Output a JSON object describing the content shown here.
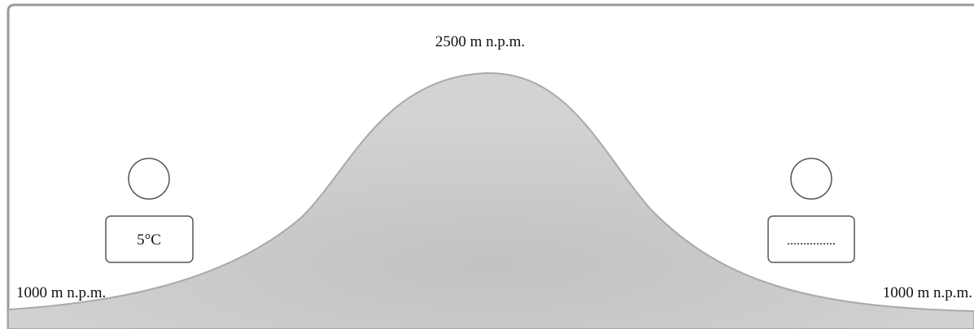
{
  "peak_label": "2500 m n.p.m.",
  "left_base_label": "1000 m n.p.m.",
  "right_base_label": "1000 m n.p.m.",
  "left_station": {
    "temperature": "5°C"
  },
  "right_station": {
    "temperature": "..............."
  },
  "colors": {
    "mountain_fill": "#c8c9cb",
    "mountain_stroke": "#a8a9ab",
    "frame": "#9a9a9a",
    "box_stroke": "#555555"
  }
}
